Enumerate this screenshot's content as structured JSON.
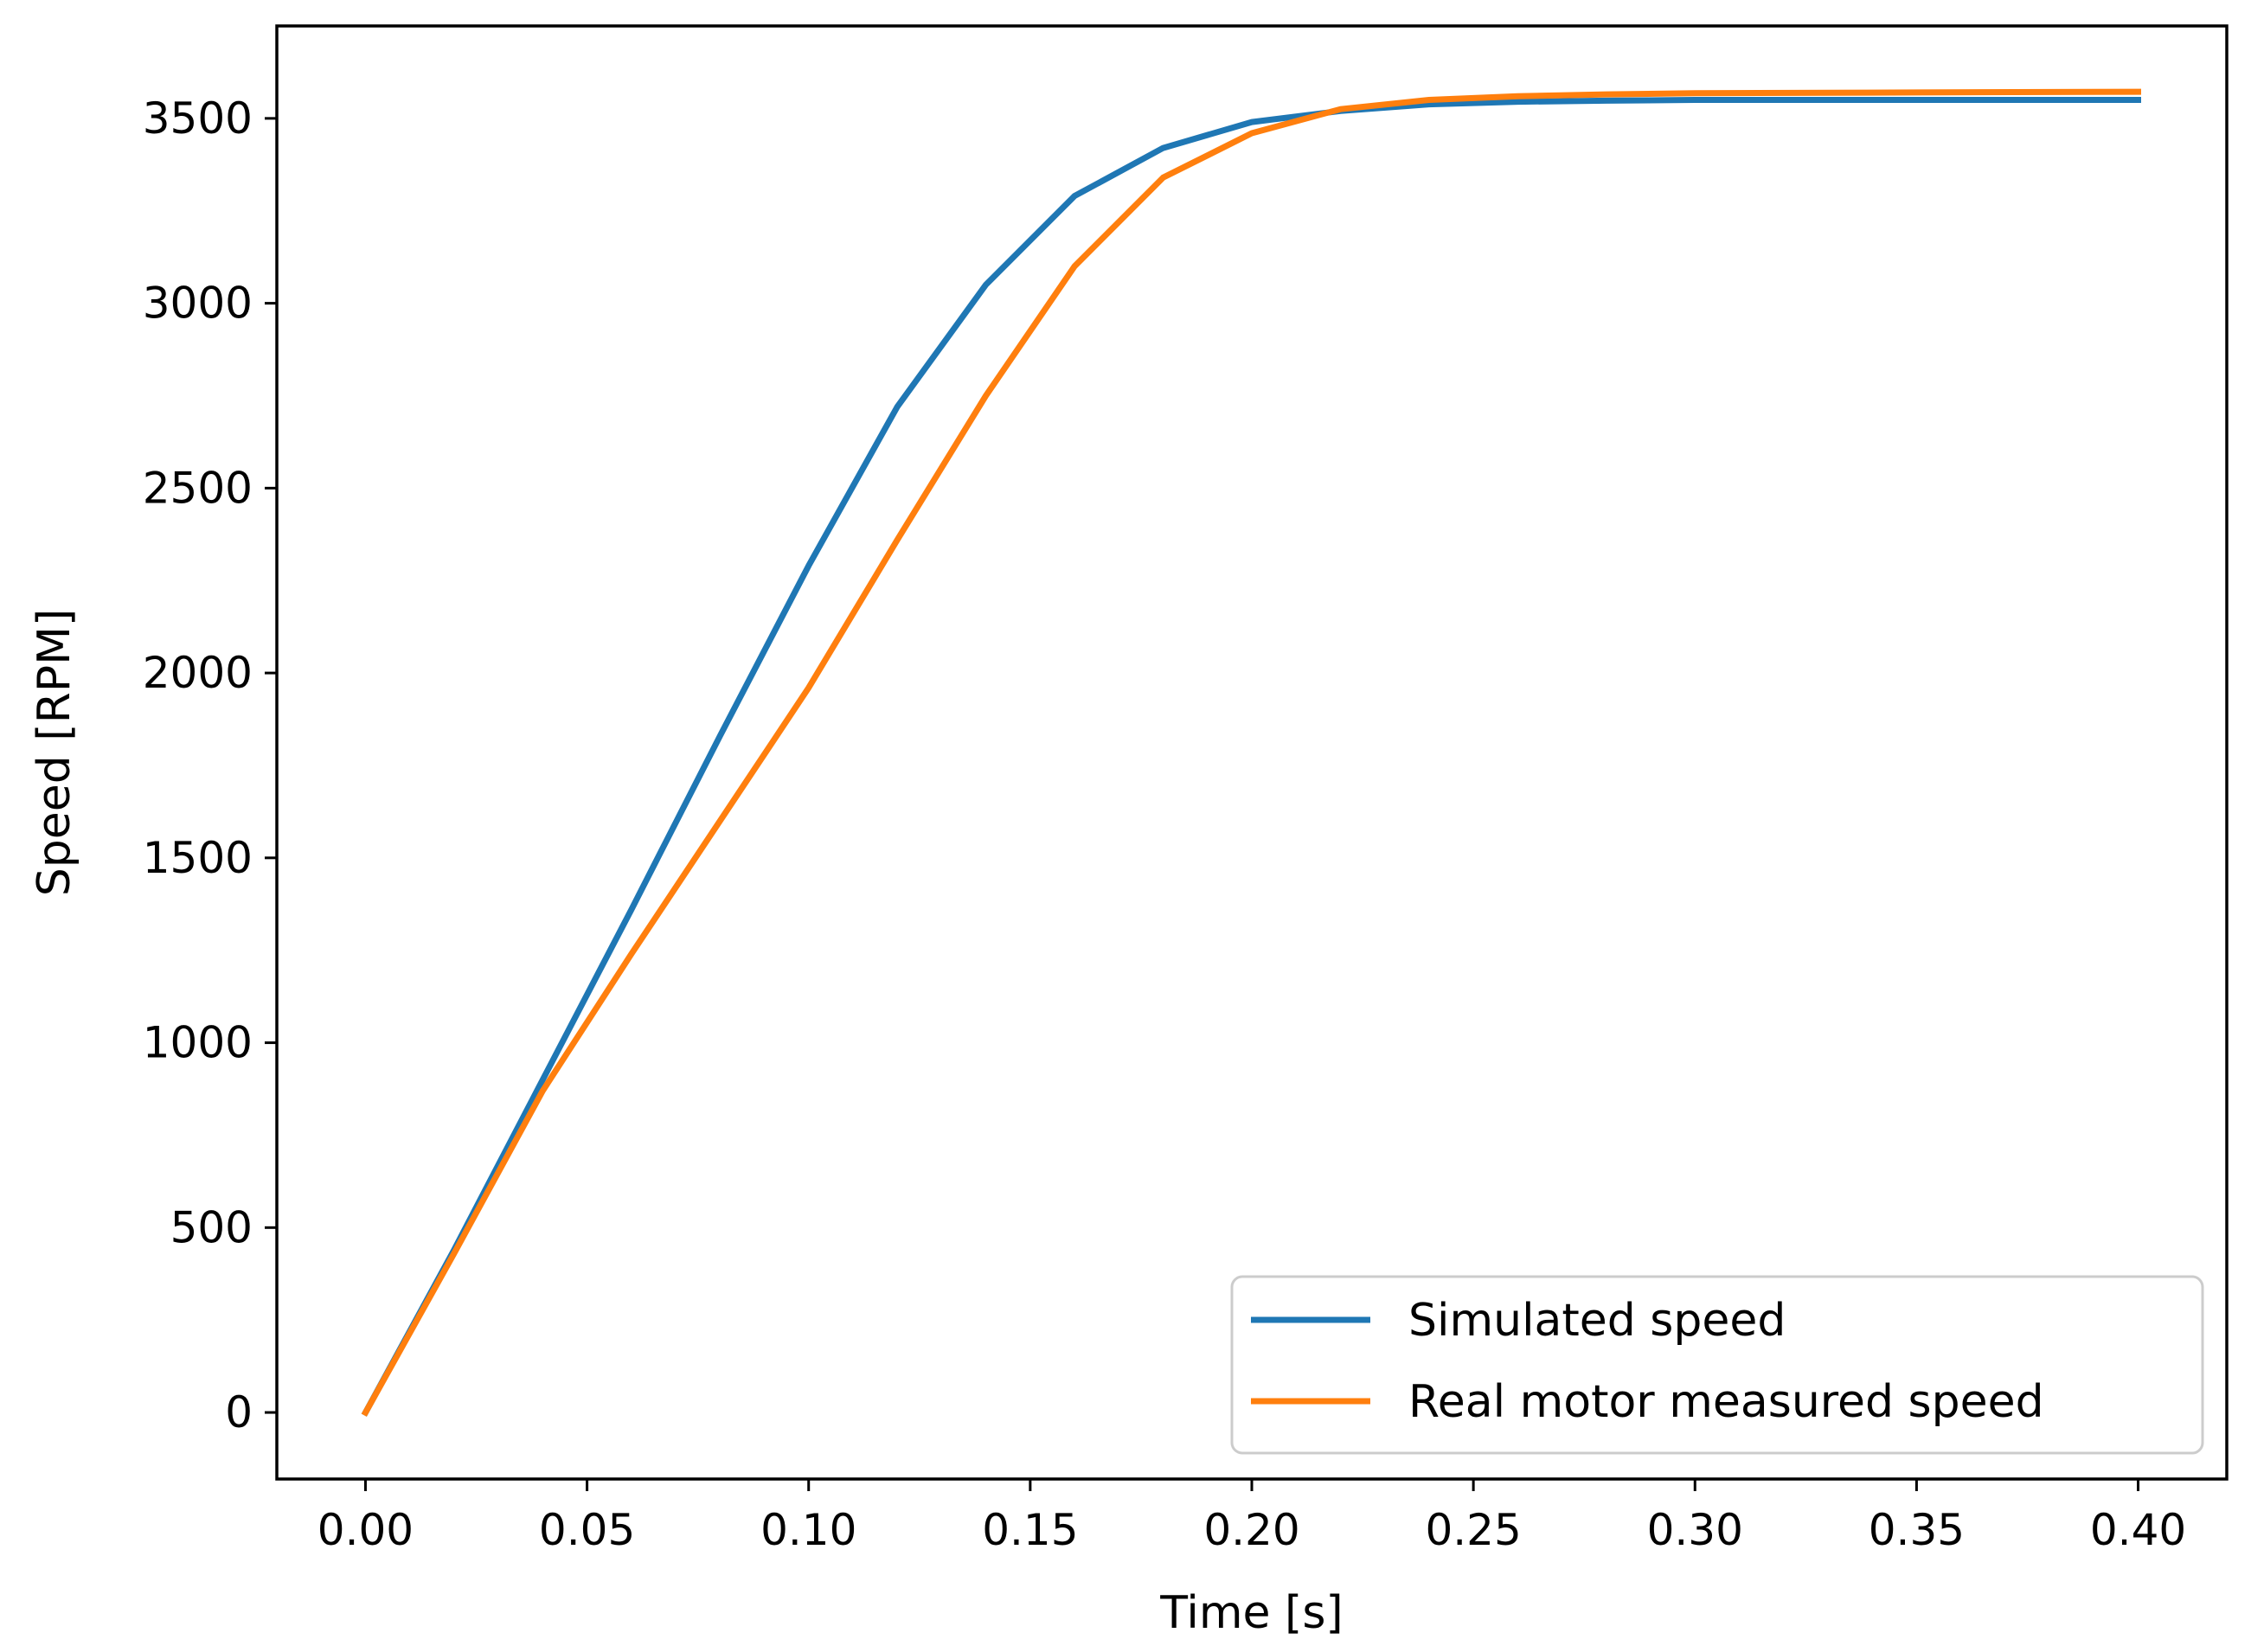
{
  "chart_data": {
    "type": "line",
    "title": "",
    "xlabel": "Time [s]",
    "ylabel": "Speed [RPM]",
    "xlim": [
      -0.02,
      0.42
    ],
    "ylim": [
      -180,
      3750
    ],
    "xticks": [
      0.0,
      0.05,
      0.1,
      0.15,
      0.2,
      0.25,
      0.3,
      0.35,
      0.4
    ],
    "xtick_labels": [
      "0.00",
      "0.05",
      "0.10",
      "0.15",
      "0.20",
      "0.25",
      "0.30",
      "0.35",
      "0.40"
    ],
    "yticks": [
      0,
      500,
      1000,
      1500,
      2000,
      2500,
      3000,
      3500
    ],
    "ytick_labels": [
      "0",
      "500",
      "1000",
      "1500",
      "2000",
      "2500",
      "3000",
      "3500"
    ],
    "grid": false,
    "legend_position": "lower-right",
    "series": [
      {
        "name": "Simulated speed",
        "color": "#1f77b4",
        "x": [
          0,
          0.02,
          0.04,
          0.06,
          0.08,
          0.1,
          0.12,
          0.14,
          0.16,
          0.18,
          0.2,
          0.22,
          0.24,
          0.26,
          0.28,
          0.3,
          0.35,
          0.4
        ],
        "y": [
          0,
          440,
          900,
          1360,
          1830,
          2290,
          2720,
          3050,
          3290,
          3420,
          3490,
          3520,
          3538,
          3545,
          3548,
          3550,
          3550,
          3550
        ]
      },
      {
        "name": "Real motor measured speed",
        "color": "#ff7f0e",
        "x": [
          0,
          0.02,
          0.04,
          0.06,
          0.08,
          0.1,
          0.12,
          0.14,
          0.16,
          0.18,
          0.2,
          0.22,
          0.24,
          0.26,
          0.28,
          0.3,
          0.35,
          0.4
        ],
        "y": [
          0,
          430,
          870,
          1240,
          1600,
          1960,
          2360,
          2750,
          3100,
          3340,
          3460,
          3525,
          3550,
          3560,
          3565,
          3568,
          3570,
          3572
        ]
      }
    ]
  }
}
